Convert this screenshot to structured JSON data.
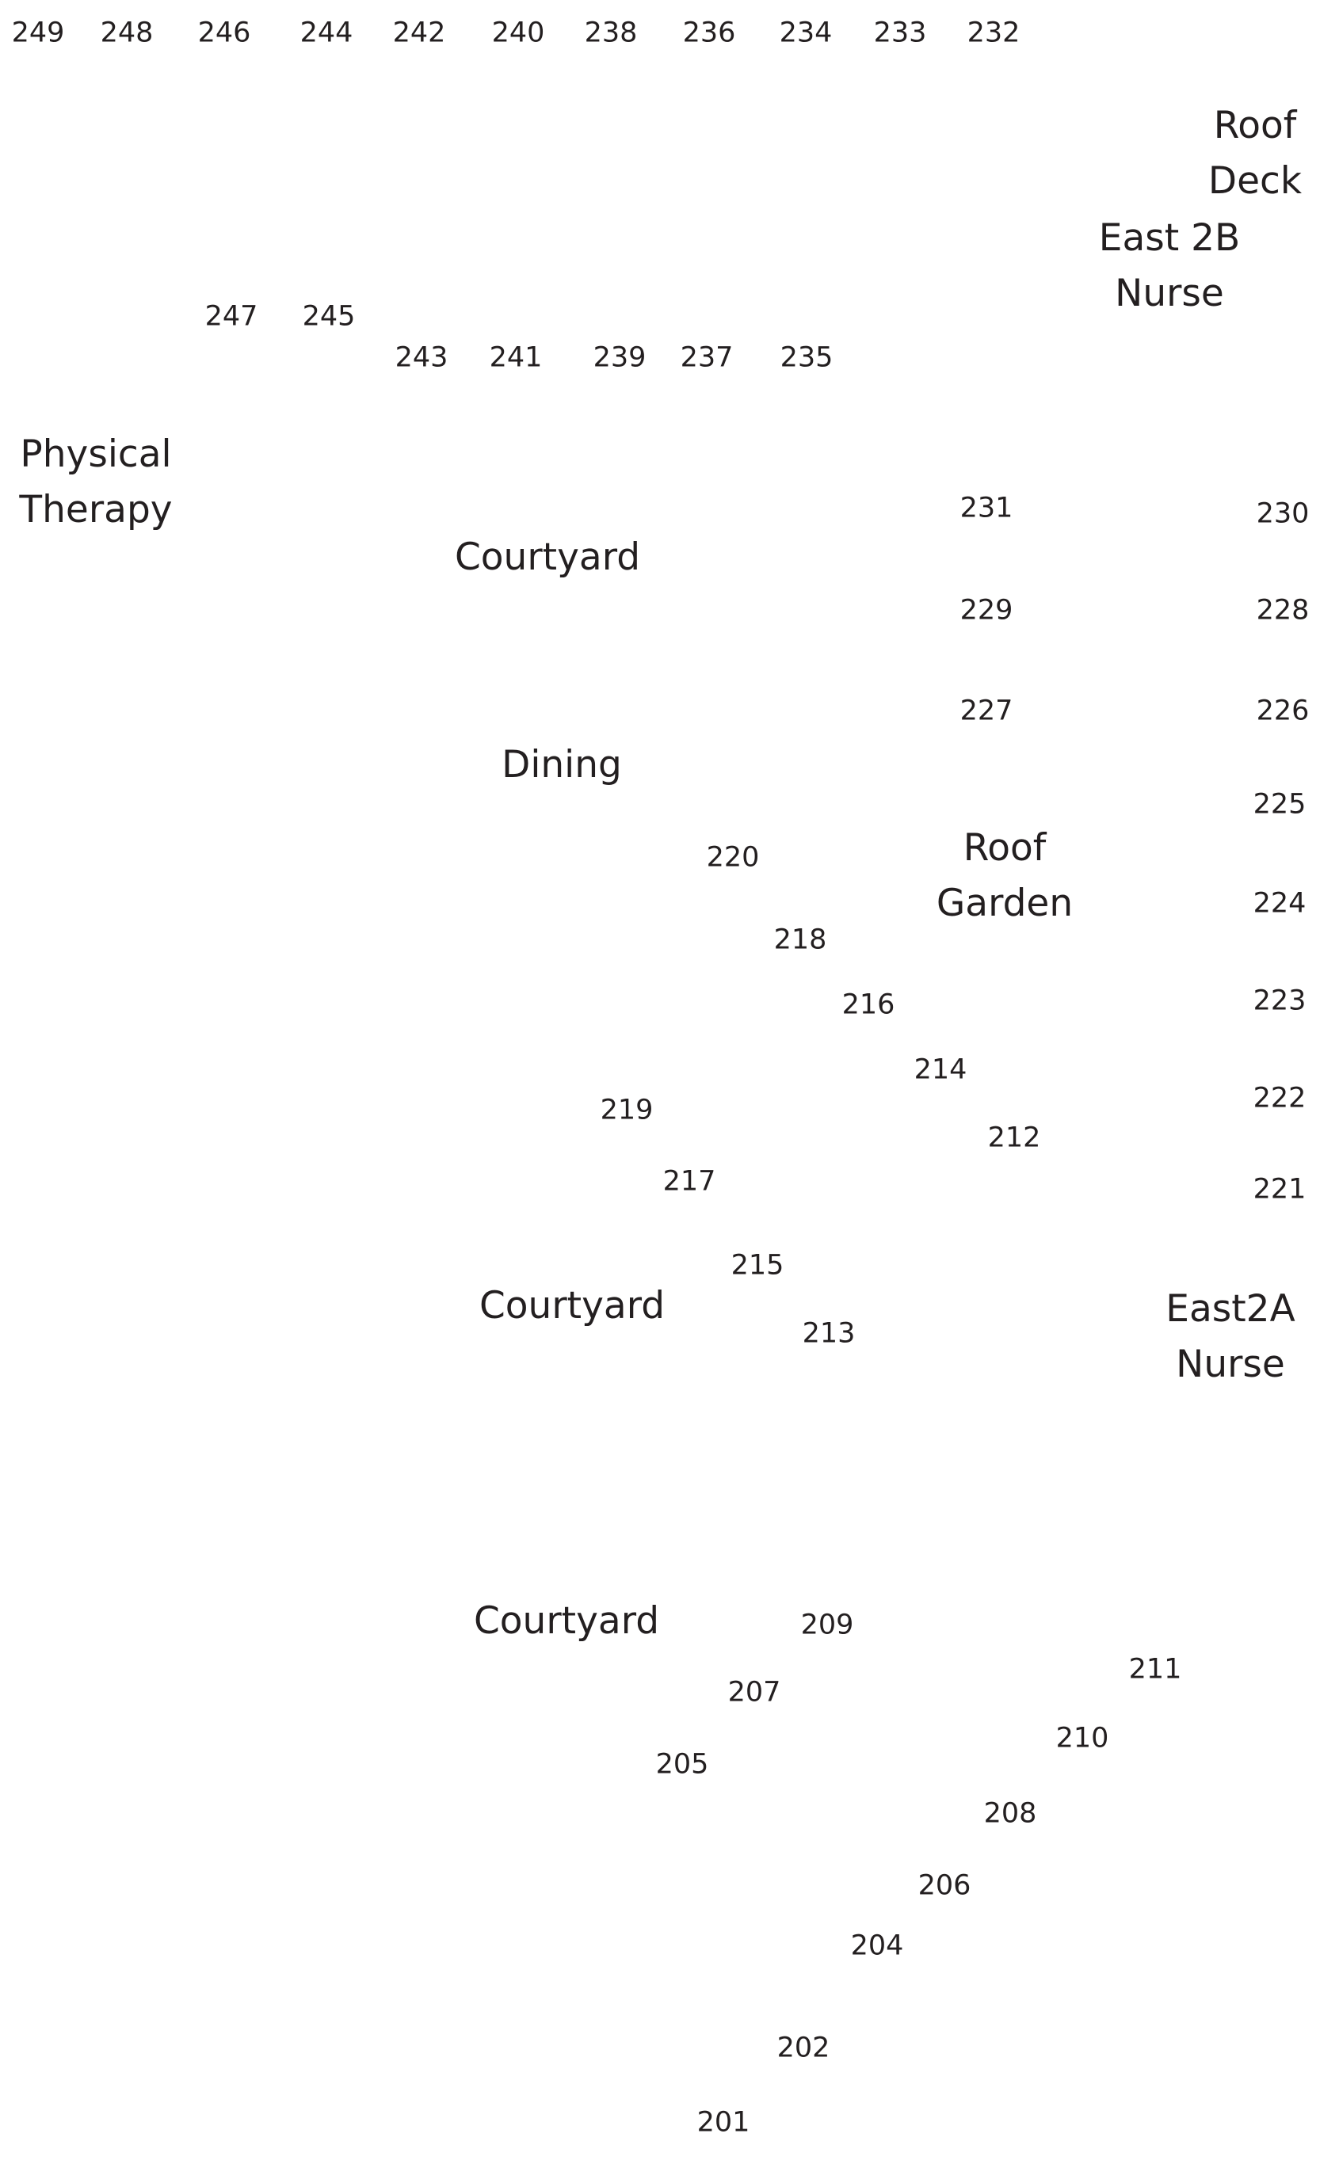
{
  "rooms": {
    "r201": "201",
    "r202": "202",
    "r204": "204",
    "r205": "205",
    "r206": "206",
    "r207": "207",
    "r208": "208",
    "r209": "209",
    "r210": "210",
    "r211": "211",
    "r212": "212",
    "r213": "213",
    "r214": "214",
    "r215": "215",
    "r216": "216",
    "r217": "217",
    "r218": "218",
    "r219": "219",
    "r220": "220",
    "r221": "221",
    "r222": "222",
    "r223": "223",
    "r224": "224",
    "r225": "225",
    "r226": "226",
    "r227": "227",
    "r228": "228",
    "r229": "229",
    "r230": "230",
    "r231": "231",
    "r232": "232",
    "r233": "233",
    "r234": "234",
    "r235": "235",
    "r236": "236",
    "r237": "237",
    "r238": "238",
    "r239": "239",
    "r240": "240",
    "r241": "241",
    "r242": "242",
    "r243": "243",
    "r244": "244",
    "r245": "245",
    "r246": "246",
    "r247": "247",
    "r248": "248",
    "r249": "249"
  },
  "areas": {
    "roof_deck": [
      "Roof",
      "Deck"
    ],
    "east_2b_nurse": [
      "East 2B",
      "Nurse"
    ],
    "physical_therapy": [
      "Physical",
      "Therapy"
    ],
    "courtyard_north": [
      "Courtyard"
    ],
    "dining": [
      "Dining"
    ],
    "roof_garden": [
      "Roof",
      "Garden"
    ],
    "courtyard_middle": [
      "Courtyard"
    ],
    "east_2a_nurse": [
      "East2A",
      "Nurse"
    ],
    "courtyard_south": [
      "Courtyard"
    ]
  }
}
